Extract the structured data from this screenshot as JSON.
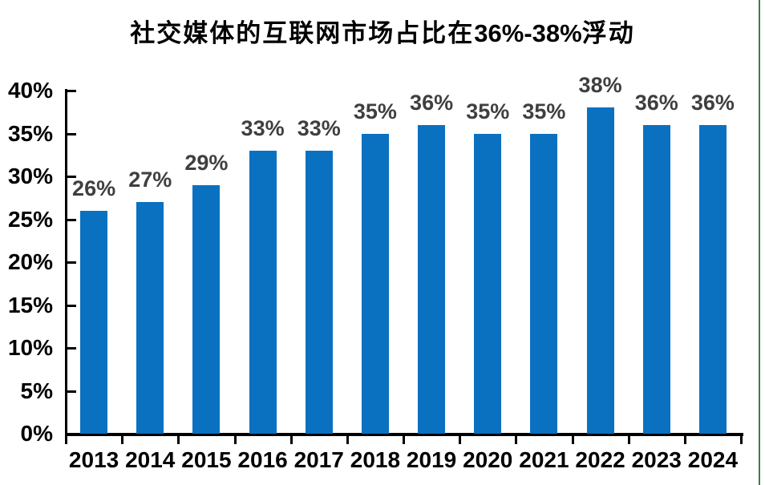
{
  "title": {
    "prefix": "社交媒体的互联网市场占比在",
    "highlight": "36%-38%",
    "suffix": "浮动"
  },
  "chart_data": {
    "type": "bar",
    "title": "社交媒体的互联网市场占比在36%-38%浮动",
    "categories": [
      "2013",
      "2014",
      "2015",
      "2016",
      "2017",
      "2018",
      "2019",
      "2020",
      "2021",
      "2022",
      "2023",
      "2024"
    ],
    "values": [
      26,
      27,
      29,
      33,
      33,
      35,
      36,
      35,
      35,
      38,
      36,
      36
    ],
    "value_labels": [
      "26%",
      "27%",
      "29%",
      "33%",
      "33%",
      "35%",
      "36%",
      "35%",
      "35%",
      "38%",
      "36%",
      "36%"
    ],
    "xlabel": "",
    "ylabel": "",
    "ylim": [
      0,
      40
    ],
    "ytick_step": 5,
    "ytick_labels": [
      "0%",
      "5%",
      "10%",
      "15%",
      "20%",
      "25%",
      "30%",
      "35%",
      "40%"
    ],
    "grid": false,
    "legend": "none",
    "data_labels_shown": true,
    "bar_color": "#0a71c0",
    "data_label_color": "#3f3f3f",
    "axis_color": "#000000"
  },
  "frame": {
    "right_border_color": "#3f7a4f"
  }
}
